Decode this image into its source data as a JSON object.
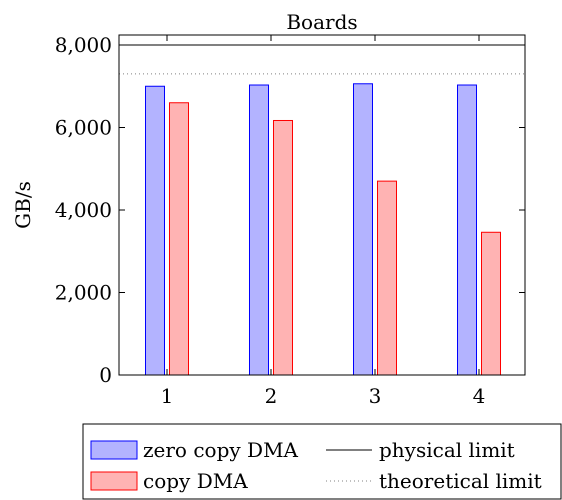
{
  "chart_data": {
    "type": "bar",
    "title": "Boards",
    "xlabel": "",
    "ylabel": "GB/s",
    "categories": [
      "1",
      "2",
      "3",
      "4"
    ],
    "ylim": [
      0,
      8000
    ],
    "yticks": [
      0,
      2000,
      4000,
      6000,
      8000
    ],
    "ytick_labels": [
      "0",
      "2,000",
      "4,000",
      "6,000",
      "8,000"
    ],
    "grid": false,
    "legend_position": "bottom",
    "series": [
      {
        "name": "zero copy DMA",
        "values": [
          7000,
          7030,
          7060,
          7030
        ],
        "fill": "#b3b3ff",
        "stroke": "#0000ff"
      },
      {
        "name": "copy DMA",
        "values": [
          6600,
          6170,
          4700,
          3460
        ],
        "fill": "#ffb3b3",
        "stroke": "#ff0000"
      }
    ],
    "reference_lines": [
      {
        "name": "physical limit",
        "value": 8000,
        "style": "solid",
        "color": "#000000"
      },
      {
        "name": "theoretical limit",
        "value": 7300,
        "style": "dotted",
        "color": "#808080"
      }
    ]
  }
}
